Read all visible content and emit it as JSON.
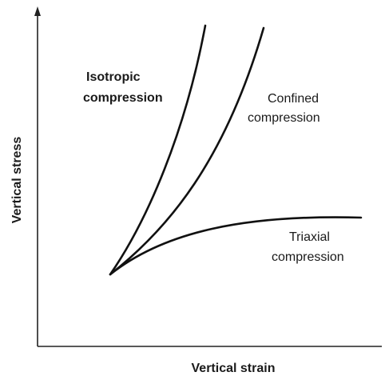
{
  "axes": {
    "y_label": "Vertical stress",
    "x_label": "Vertical strain"
  },
  "curves": [
    {
      "label": [
        "Isotropic",
        "compression"
      ]
    },
    {
      "label": [
        "Confined",
        "compression"
      ]
    },
    {
      "label": [
        "Triaxial",
        "compression"
      ]
    }
  ]
}
